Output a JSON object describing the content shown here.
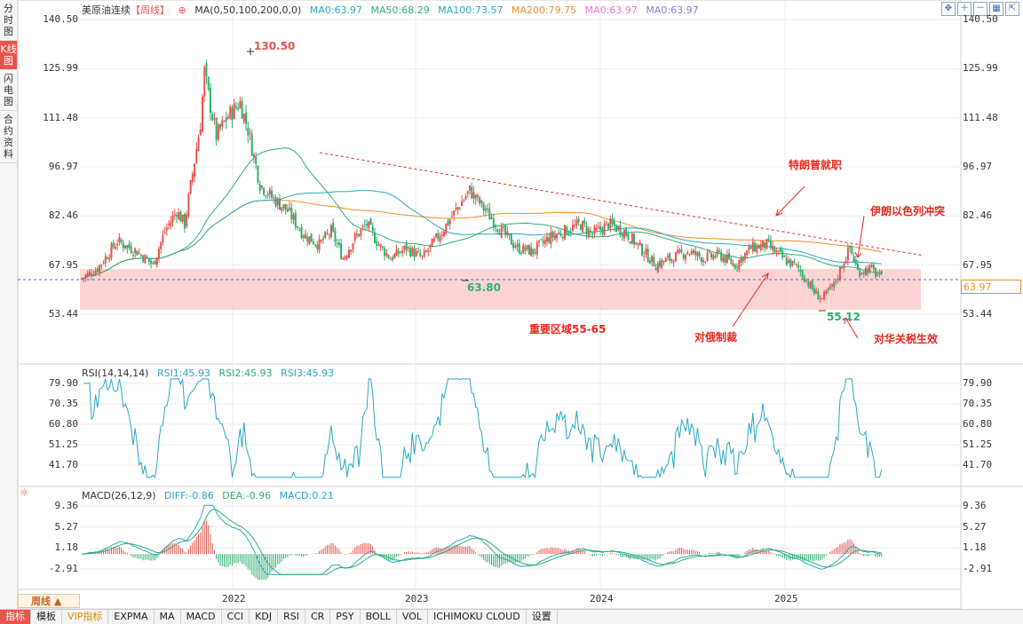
{
  "sidebar": {
    "tabs": [
      {
        "label": "分时图",
        "active": false
      },
      {
        "label": "K线图",
        "active": true
      },
      {
        "label": "闪电图",
        "active": false
      },
      {
        "label": "合约资料",
        "active": false
      }
    ]
  },
  "main_legend": {
    "name": "美原油连续",
    "period_tag": "【周线】",
    "ma_params": "MA(0,50,100,200,0,0)",
    "ma0": "MA0:63.97",
    "ma50": "MA50:68.29",
    "ma100": "MA100:73.57",
    "ma200": "MA200:79.75",
    "ma0b": "MA0:63.97",
    "ma0c": "MA0:63.97"
  },
  "rsi_legend": {
    "name": "RSI(14,14,14)",
    "rsi1": "RSI1:45.93",
    "rsi2": "RSI2:45.93",
    "rsi3": "RSI3:45.93"
  },
  "macd_legend": {
    "name": "MACD(26,12,9)",
    "diff": "DIFF:-0.86",
    "dea": "DEA:-0.96",
    "macd": "MACD:0.21"
  },
  "price_axis": [
    "140.50",
    "125.99",
    "111.48",
    "96.97",
    "82.46",
    "67.95",
    "53.44"
  ],
  "rsi_axis": [
    "79.90",
    "70.35",
    "60.80",
    "51.25",
    "41.70"
  ],
  "macd_axis": [
    "9.36",
    "5.27",
    "1.18",
    "-2.91"
  ],
  "x_axis": [
    "2022",
    "2023",
    "2024",
    "2025"
  ],
  "current_price": "63.97",
  "annotations": {
    "high": "130.50",
    "low_2023": "63.80",
    "low_2025": "55.12",
    "zone": "重要区域55-65",
    "trump": "特朗普就职",
    "iran": "伊朗以色列冲突",
    "russia": "对俄制裁",
    "tariff": "对华关税生效"
  },
  "period_selector": "周线",
  "bottom_tabs": [
    {
      "label": "指标",
      "style": "active"
    },
    {
      "label": "模板",
      "style": ""
    },
    {
      "label": "VIP指标",
      "style": "vip"
    },
    {
      "label": "EXPMA",
      "style": ""
    },
    {
      "label": "MA",
      "style": ""
    },
    {
      "label": "MACD",
      "style": ""
    },
    {
      "label": "CCI",
      "style": ""
    },
    {
      "label": "KDJ",
      "style": ""
    },
    {
      "label": "RSI",
      "style": ""
    },
    {
      "label": "CR",
      "style": ""
    },
    {
      "label": "PSY",
      "style": ""
    },
    {
      "label": "BOLL",
      "style": ""
    },
    {
      "label": "VOL",
      "style": ""
    },
    {
      "label": "ICHIMOKU CLOUD",
      "style": ""
    },
    {
      "label": "设置",
      "style": ""
    }
  ],
  "colors": {
    "up": "#e8534c",
    "down": "#2fae70",
    "ma50": "#2fae70",
    "ma100": "#29a8c4",
    "ma200": "#f08c28",
    "zone": "#fbc6c6",
    "annotation": "#e8281e"
  },
  "chart_data": {
    "type": "candlestick",
    "title": "美原油连续【周线】",
    "price_range": [
      53.44,
      140.5
    ],
    "rsi_range": [
      41.7,
      79.9
    ],
    "macd_range": [
      -2.91,
      9.36
    ],
    "highlight_zone": [
      55,
      65
    ],
    "key_levels": {
      "high": 130.5,
      "low_2023": 63.8,
      "low_2025": 55.12,
      "last": 63.97
    },
    "ma_values": {
      "MA50": 68.29,
      "MA100": 73.57,
      "MA200": 79.75
    },
    "rsi_last": 45.93,
    "macd_last": {
      "DIFF": -0.86,
      "DEA": -0.96,
      "MACD": 0.21
    }
  }
}
